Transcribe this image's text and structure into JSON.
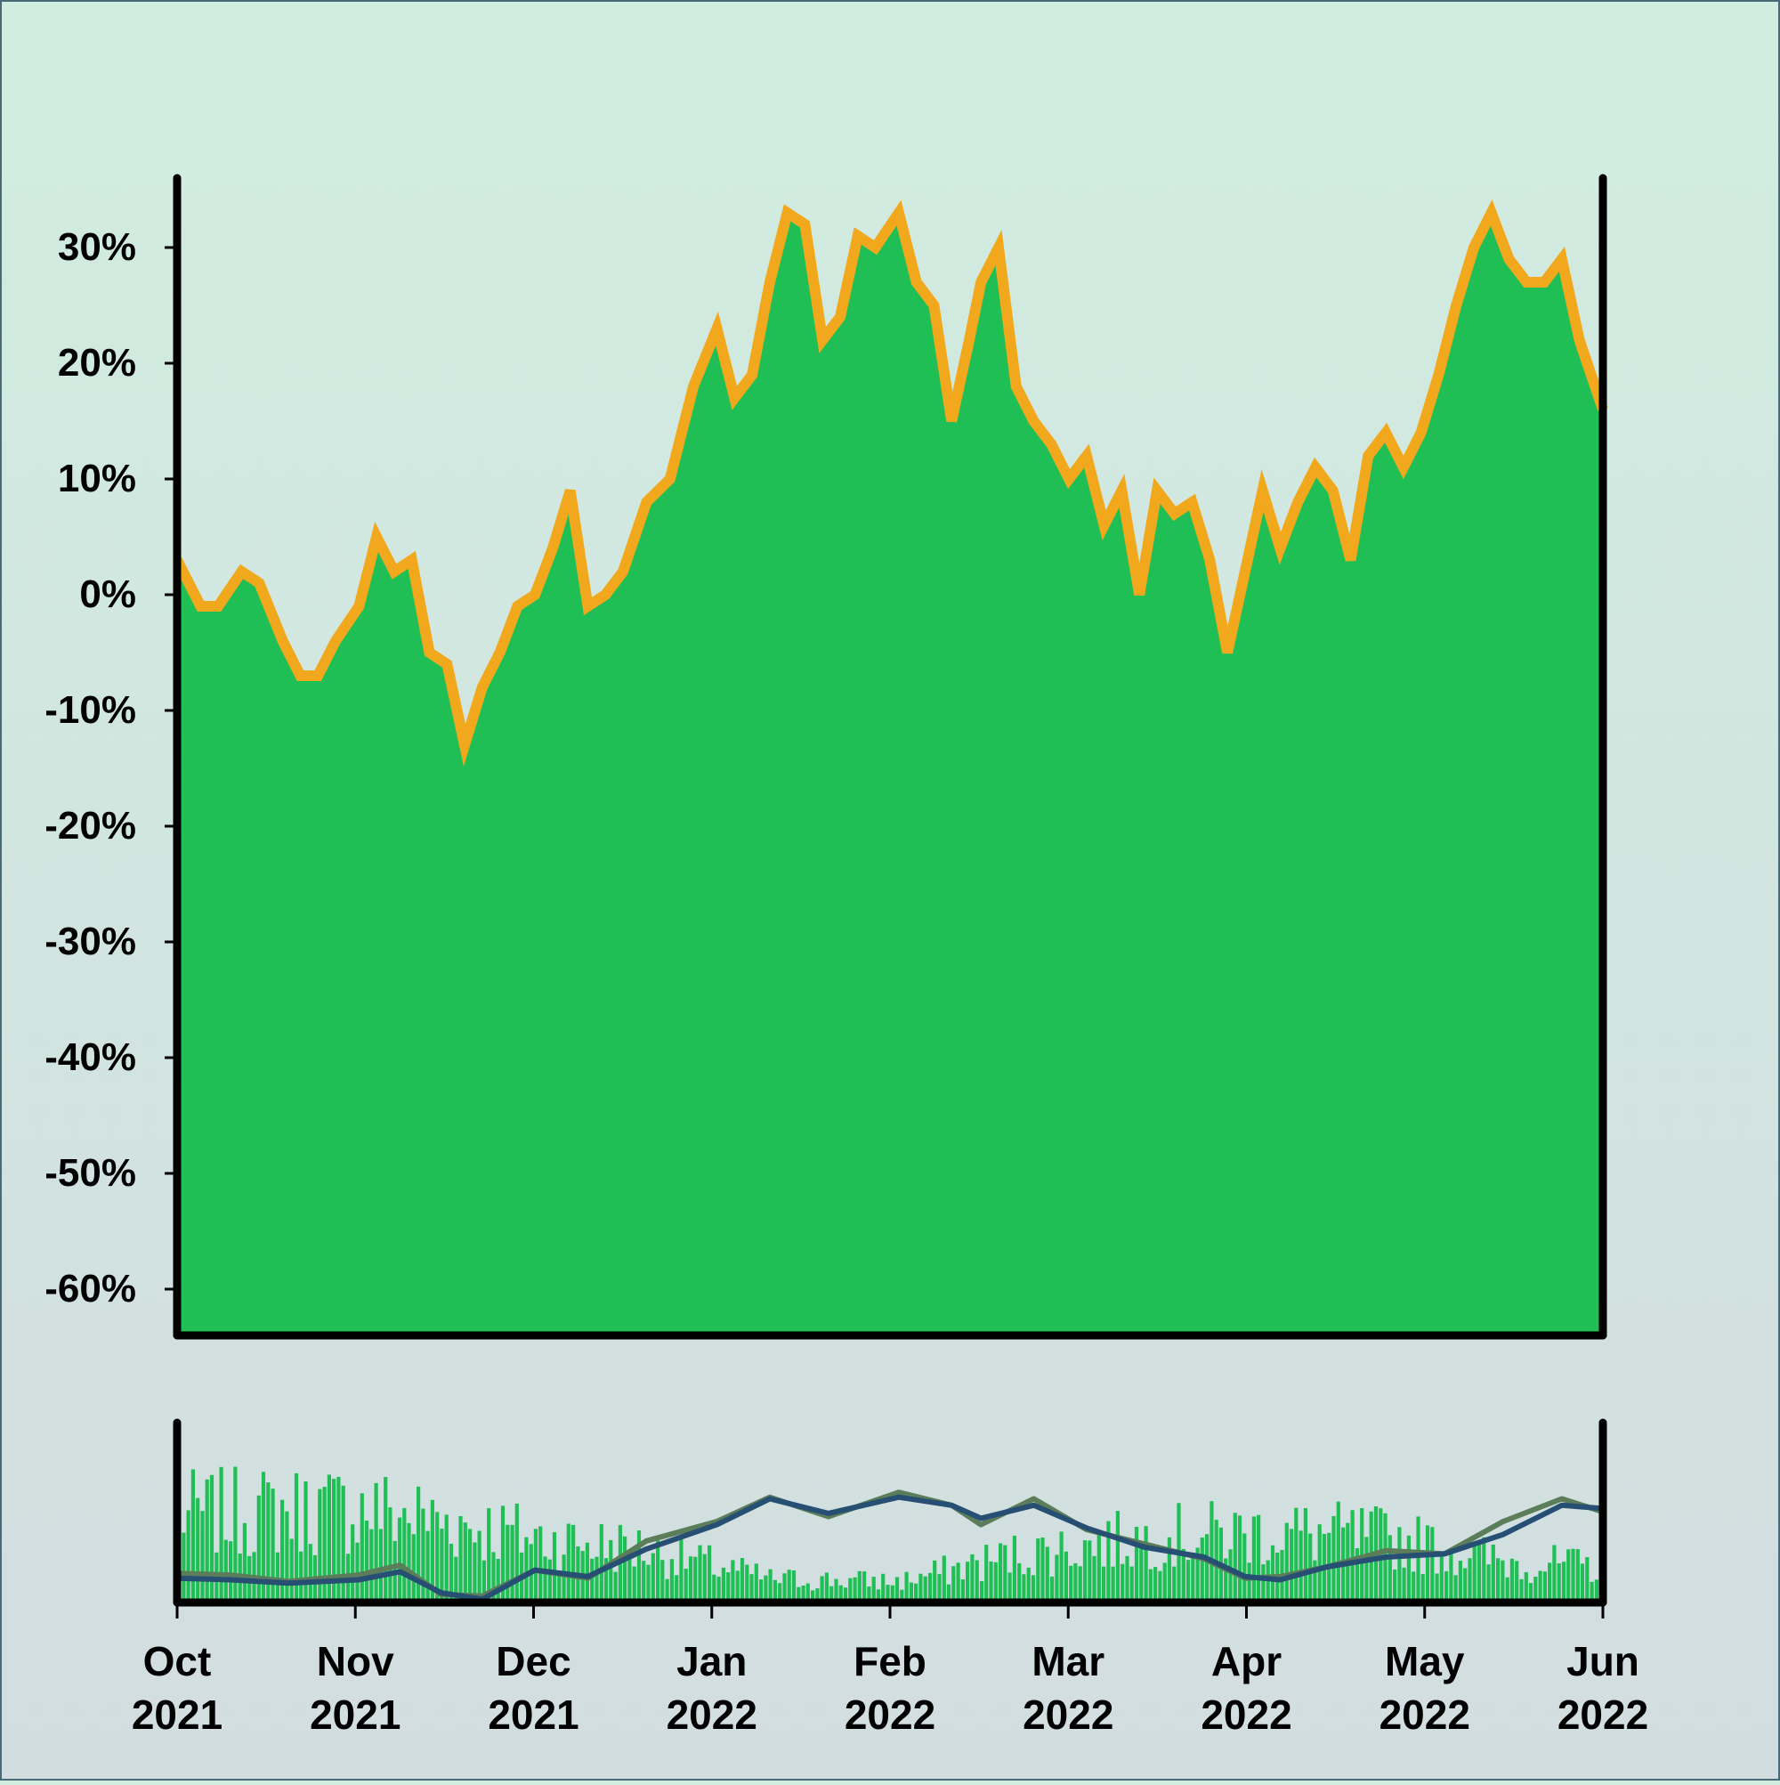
{
  "chart_data": [
    {
      "type": "area",
      "title": "",
      "xlabel": "",
      "ylabel": "",
      "ylim": [
        -0.64,
        0.36
      ],
      "y_ticks": [
        0.3,
        0.2,
        0.1,
        0.0,
        -0.1,
        -0.2,
        -0.3,
        -0.4,
        -0.5,
        -0.6
      ],
      "y_tick_labels": [
        "30%",
        "20%",
        "10%",
        "0%",
        "-10%",
        "-20%",
        "-30%",
        "-40%",
        "-50%",
        "-60%"
      ],
      "xlim": [
        "2021-10-01",
        "2022-06-01"
      ],
      "grid": false,
      "colors": {
        "fill": "#20bf55",
        "band": "#f2a81d"
      },
      "series": [
        {
          "x": [
            "2021-10-01",
            "2021-10-05",
            "2021-10-08",
            "2021-10-12",
            "2021-10-15",
            "2021-10-19",
            "2021-10-22",
            "2021-10-25",
            "2021-10-28",
            "2021-11-01",
            "2021-11-04",
            "2021-11-07",
            "2021-11-10",
            "2021-11-13",
            "2021-11-16",
            "2021-11-19",
            "2021-11-22",
            "2021-11-25",
            "2021-11-28",
            "2021-12-01",
            "2021-12-04",
            "2021-12-07",
            "2021-12-10",
            "2021-12-13",
            "2021-12-16",
            "2021-12-20",
            "2021-12-24",
            "2021-12-28",
            "2022-01-01",
            "2022-01-04",
            "2022-01-07",
            "2022-01-10",
            "2022-01-13",
            "2022-01-16",
            "2022-01-19",
            "2022-01-22",
            "2022-01-25",
            "2022-01-28",
            "2022-02-01",
            "2022-02-04",
            "2022-02-07",
            "2022-02-10",
            "2022-02-13",
            "2022-02-15",
            "2022-02-18",
            "2022-02-21",
            "2022-02-24",
            "2022-02-27",
            "2022-03-02",
            "2022-03-05",
            "2022-03-08",
            "2022-03-11",
            "2022-03-14",
            "2022-03-17",
            "2022-03-20",
            "2022-03-23",
            "2022-03-26",
            "2022-03-29",
            "2022-04-01",
            "2022-04-04",
            "2022-04-07",
            "2022-04-10",
            "2022-04-13",
            "2022-04-16",
            "2022-04-19",
            "2022-04-22",
            "2022-04-25",
            "2022-04-28",
            "2022-05-01",
            "2022-05-04",
            "2022-05-07",
            "2022-05-10",
            "2022-05-13",
            "2022-05-16",
            "2022-05-19",
            "2022-05-22",
            "2022-05-25",
            "2022-05-28",
            "2022-06-01"
          ],
          "y": [
            0.03,
            -0.01,
            -0.01,
            0.02,
            0.01,
            -0.04,
            -0.07,
            -0.07,
            -0.04,
            -0.01,
            0.05,
            0.02,
            0.03,
            -0.05,
            -0.06,
            -0.13,
            -0.08,
            -0.05,
            -0.01,
            0.0,
            0.04,
            0.09,
            -0.01,
            0.0,
            0.02,
            0.08,
            0.1,
            0.18,
            0.23,
            0.17,
            0.19,
            0.27,
            0.33,
            0.32,
            0.22,
            0.24,
            0.31,
            0.3,
            0.33,
            0.27,
            0.25,
            0.15,
            0.22,
            0.27,
            0.3,
            0.18,
            0.15,
            0.13,
            0.1,
            0.12,
            0.06,
            0.09,
            0.0,
            0.09,
            0.07,
            0.08,
            0.03,
            -0.05,
            0.02,
            0.09,
            0.04,
            0.08,
            0.11,
            0.09,
            0.03,
            0.12,
            0.14,
            0.11,
            0.14,
            0.19,
            0.25,
            0.3,
            0.33,
            0.29,
            0.27,
            0.27,
            0.29,
            0.22,
            0.16
          ]
        }
      ]
    },
    {
      "type": "bar",
      "title": "",
      "xlabel": "",
      "ylabel": "",
      "x_tick_labels": [
        [
          "Oct",
          "2021"
        ],
        [
          "Nov",
          "2021"
        ],
        [
          "Dec",
          "2021"
        ],
        [
          "Jan",
          "2022"
        ],
        [
          "Feb",
          "2022"
        ],
        [
          "Mar",
          "2022"
        ],
        [
          "Apr",
          "2022"
        ],
        [
          "May",
          "2022"
        ],
        [
          "Jun",
          "2022"
        ]
      ],
      "colors": {
        "bars": "#20bf55",
        "line_fast": "#5b7d5a",
        "line_slow": "#274f73"
      },
      "bar_levels": {
        "x": [
          "2021-10-01",
          "2021-11-01",
          "2021-11-15",
          "2021-12-01",
          "2021-12-20",
          "2022-01-10",
          "2022-02-01",
          "2022-02-20",
          "2022-03-15",
          "2022-04-05",
          "2022-04-25",
          "2022-05-15",
          "2022-06-01"
        ],
        "y": [
          0.75,
          0.8,
          0.7,
          0.55,
          0.45,
          0.2,
          0.18,
          0.4,
          0.55,
          0.6,
          0.55,
          0.35,
          0.3
        ]
      },
      "series": [
        {
          "x": [
            "2021-10-01",
            "2021-10-10",
            "2021-10-20",
            "2021-11-01",
            "2021-11-08",
            "2021-11-15",
            "2021-11-22",
            "2021-12-01",
            "2021-12-10",
            "2021-12-20",
            "2022-01-01",
            "2022-01-10",
            "2022-01-20",
            "2022-02-01",
            "2022-02-10",
            "2022-02-15",
            "2022-02-24",
            "2022-03-05",
            "2022-03-15",
            "2022-03-25",
            "2022-04-01",
            "2022-04-07",
            "2022-04-15",
            "2022-04-25",
            "2022-05-05",
            "2022-05-15",
            "2022-05-25",
            "2022-06-01"
          ],
          "y": [
            0.18,
            0.17,
            0.13,
            0.17,
            0.23,
            0.05,
            0.04,
            0.2,
            0.15,
            0.38,
            0.5,
            0.65,
            0.53,
            0.68,
            0.6,
            0.48,
            0.64,
            0.45,
            0.36,
            0.27,
            0.15,
            0.16,
            0.22,
            0.32,
            0.3,
            0.5,
            0.64,
            0.56
          ]
        },
        {
          "x": [
            "2021-10-01",
            "2021-10-10",
            "2021-10-20",
            "2021-11-01",
            "2021-11-08",
            "2021-11-15",
            "2021-11-22",
            "2021-12-01",
            "2021-12-10",
            "2021-12-20",
            "2022-01-01",
            "2022-01-10",
            "2022-01-20",
            "2022-02-01",
            "2022-02-10",
            "2022-02-15",
            "2022-02-24",
            "2022-03-05",
            "2022-03-15",
            "2022-03-25",
            "2022-04-01",
            "2022-04-07",
            "2022-04-15",
            "2022-04-25",
            "2022-05-05",
            "2022-05-15",
            "2022-05-25",
            "2022-06-01"
          ],
          "y": [
            0.15,
            0.14,
            0.12,
            0.14,
            0.19,
            0.06,
            0.02,
            0.2,
            0.16,
            0.33,
            0.48,
            0.64,
            0.55,
            0.65,
            0.6,
            0.52,
            0.6,
            0.46,
            0.34,
            0.28,
            0.16,
            0.14,
            0.22,
            0.28,
            0.3,
            0.42,
            0.6,
            0.58
          ]
        }
      ]
    }
  ]
}
